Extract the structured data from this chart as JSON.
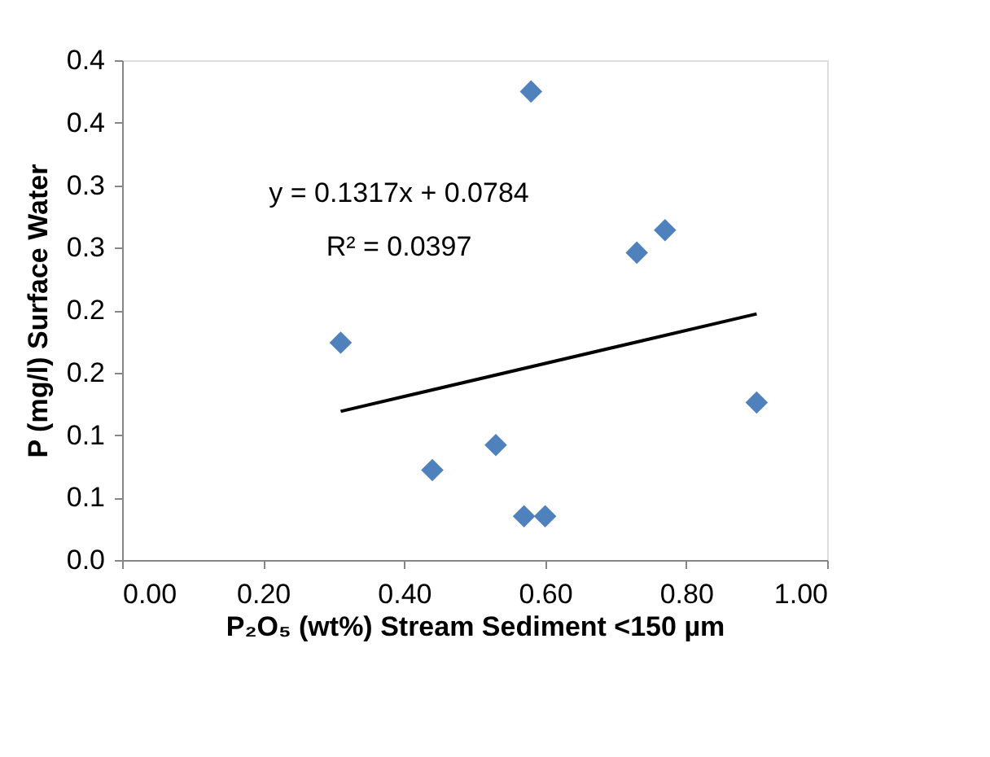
{
  "chart_data": {
    "type": "scatter",
    "xlabel": "P₂O₅ (wt%) Stream Sediment <150 µm",
    "ylabel": "P (mg/l) Surface Water",
    "annotations": [
      "y = 0.1317x + 0.0784",
      "R² = 0.0397"
    ],
    "series": [
      {
        "color": "#4f81bd",
        "marker": "diamond",
        "x": [
          0.31,
          0.44,
          0.53,
          0.57,
          0.6,
          0.58,
          0.73,
          0.77,
          0.9
        ],
        "values": [
          0.174,
          0.072,
          0.092,
          0.035,
          0.035,
          0.375,
          0.246,
          0.264,
          0.126
        ]
      },
      {
        "type": "line",
        "color": "#000000",
        "line_style": "solid",
        "x": [
          0.31,
          0.9
        ],
        "values": [
          0.119,
          0.197
        ]
      }
    ],
    "xlim": [
      0,
      1
    ],
    "xticks": [
      {
        "value": 0,
        "label": "0.00"
      },
      {
        "value": 0.2,
        "label": "0.20"
      },
      {
        "value": 0.4,
        "label": "0.40"
      },
      {
        "value": 0.6,
        "label": "0.60"
      },
      {
        "value": 0.8,
        "label": "0.80"
      },
      {
        "value": 1,
        "label": "1.00"
      }
    ],
    "ylim": [
      0,
      0.4
    ],
    "yticks": [
      {
        "value": 0,
        "label": "0.0"
      },
      {
        "value": 0.05,
        "label": "0.1"
      },
      {
        "value": 0.1,
        "label": "0.1"
      },
      {
        "value": 0.15,
        "label": "0.2"
      },
      {
        "value": 0.2,
        "label": "0.2"
      },
      {
        "value": 0.25,
        "label": "0.3"
      },
      {
        "value": 0.3,
        "label": "0.3"
      },
      {
        "value": 0.35,
        "label": "0.4"
      },
      {
        "value": 0.4,
        "label": "0.4"
      }
    ],
    "grid": false
  }
}
